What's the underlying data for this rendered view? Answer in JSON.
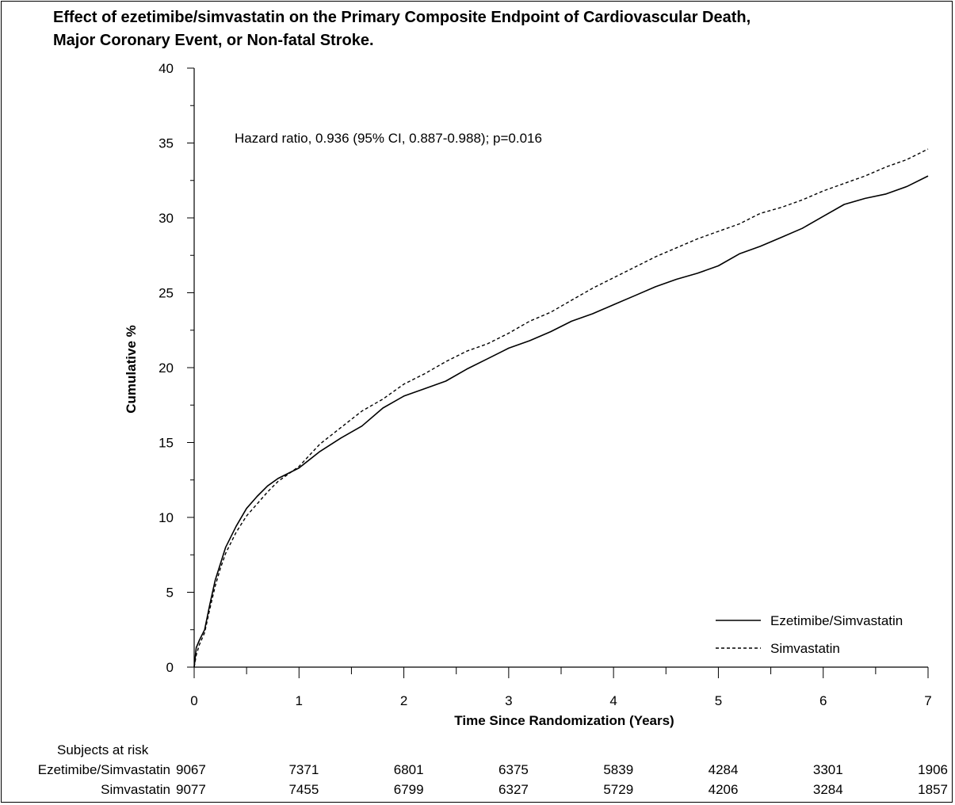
{
  "title_line1": "Effect of ezetimibe/simvastatin on the Primary Composite Endpoint of Cardiovascular Death,",
  "title_line2": "Major Coronary Event, or Non-fatal Stroke.",
  "annotation": "Hazard ratio, 0.936 (95% CI, 0.887-0.988); p=0.016",
  "chart_data": {
    "type": "line",
    "title": "Effect of ezetimibe/simvastatin on the Primary Composite Endpoint of Cardiovascular Death, Major Coronary Event, or Non-fatal Stroke.",
    "xlabel": "Time Since Randomization (Years)",
    "ylabel": "Cumulative %",
    "xlim": [
      0,
      7
    ],
    "ylim": [
      0,
      40
    ],
    "xticks": [
      0,
      1,
      2,
      3,
      4,
      5,
      6,
      7
    ],
    "yticks": [
      0,
      5,
      10,
      15,
      20,
      25,
      30,
      35,
      40
    ],
    "legend_position": "bottom-right",
    "series": [
      {
        "name": "Ezetimibe/Simvastatin",
        "style": "solid",
        "x": [
          0,
          0.02,
          0.05,
          0.1,
          0.15,
          0.2,
          0.25,
          0.3,
          0.4,
          0.5,
          0.6,
          0.7,
          0.8,
          1.0,
          1.2,
          1.4,
          1.6,
          1.8,
          2.0,
          2.2,
          2.4,
          2.6,
          2.8,
          3.0,
          3.2,
          3.4,
          3.6,
          3.8,
          4.0,
          4.2,
          4.4,
          4.6,
          4.8,
          5.0,
          5.2,
          5.4,
          5.6,
          5.8,
          6.0,
          6.2,
          6.4,
          6.6,
          6.8,
          7.0
        ],
        "y": [
          0,
          1.3,
          1.8,
          2.5,
          4.2,
          5.8,
          6.9,
          8.0,
          9.4,
          10.6,
          11.4,
          12.1,
          12.6,
          13.3,
          14.4,
          15.3,
          16.1,
          17.3,
          18.1,
          18.6,
          19.1,
          19.9,
          20.6,
          21.3,
          21.8,
          22.4,
          23.1,
          23.6,
          24.2,
          24.8,
          25.4,
          25.9,
          26.3,
          26.8,
          27.6,
          28.1,
          28.7,
          29.3,
          30.1,
          30.9,
          31.3,
          31.6,
          32.1,
          32.8
        ]
      },
      {
        "name": "Simvastatin",
        "style": "dashed",
        "x": [
          0,
          0.02,
          0.05,
          0.1,
          0.15,
          0.2,
          0.25,
          0.3,
          0.4,
          0.5,
          0.6,
          0.7,
          0.8,
          1.0,
          1.2,
          1.4,
          1.6,
          1.8,
          2.0,
          2.2,
          2.4,
          2.6,
          2.8,
          3.0,
          3.2,
          3.4,
          3.6,
          3.8,
          4.0,
          4.2,
          4.4,
          4.6,
          4.8,
          5.0,
          5.2,
          5.4,
          5.6,
          5.8,
          6.0,
          6.2,
          6.4,
          6.6,
          6.8,
          7.0
        ],
        "y": [
          0,
          0.8,
          1.5,
          2.3,
          3.9,
          5.4,
          6.6,
          7.6,
          9.0,
          10.1,
          10.9,
          11.7,
          12.4,
          13.4,
          14.9,
          16.0,
          17.1,
          17.9,
          18.9,
          19.6,
          20.4,
          21.1,
          21.6,
          22.3,
          23.1,
          23.7,
          24.5,
          25.3,
          26.0,
          26.7,
          27.4,
          28.0,
          28.6,
          29.1,
          29.6,
          30.3,
          30.7,
          31.2,
          31.8,
          32.3,
          32.8,
          33.4,
          33.9,
          34.6
        ]
      }
    ]
  },
  "risk_table": {
    "header": "Subjects at risk",
    "times": [
      0,
      1,
      2,
      3,
      4,
      5,
      6,
      7
    ],
    "rows": [
      {
        "label": "Ezetimibe/Simvastatin",
        "values": [
          "9067",
          "7371",
          "6801",
          "6375",
          "5839",
          "4284",
          "3301",
          "1906"
        ]
      },
      {
        "label": "Simvastatin",
        "values": [
          "9077",
          "7455",
          "6799",
          "6327",
          "5729",
          "4206",
          "3284",
          "1857"
        ]
      }
    ]
  }
}
